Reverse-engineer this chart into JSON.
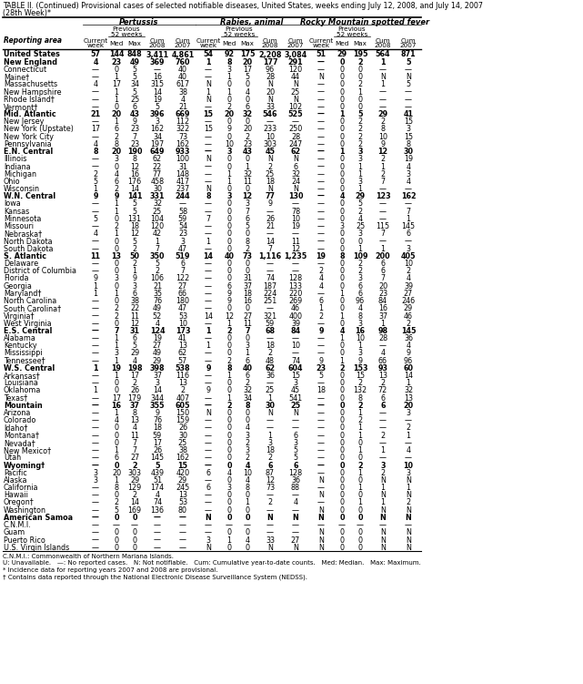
{
  "title_line1": "TABLE II. (Continued) Provisional cases of selected notifiable diseases, United States, weeks ending July 12, 2008, and July 14, 2007",
  "title_line2": "(28th Week)*",
  "col_groups": [
    "Pertussis",
    "Rabies, animal",
    "Rocky Mountain spotted fever"
  ],
  "rows": [
    [
      "United States",
      "57",
      "144",
      "848",
      "3,411",
      "4,861",
      "54",
      "92",
      "175",
      "2,208",
      "3,084",
      "51",
      "29",
      "195",
      "564",
      "871"
    ],
    [
      "New England",
      "4",
      "23",
      "49",
      "369",
      "760",
      "1",
      "8",
      "20",
      "177",
      "291",
      "—",
      "0",
      "2",
      "1",
      "5"
    ],
    [
      "Connecticut",
      "—",
      "0",
      "5",
      "—",
      "40",
      "—",
      "3",
      "17",
      "96",
      "120",
      "—",
      "0",
      "0",
      "—",
      "—"
    ],
    [
      "Maine†",
      "—",
      "1",
      "5",
      "16",
      "40",
      "—",
      "1",
      "5",
      "28",
      "44",
      "N",
      "0",
      "0",
      "N",
      "N"
    ],
    [
      "Massachusetts",
      "4",
      "17",
      "34",
      "315",
      "617",
      "N",
      "0",
      "0",
      "N",
      "N",
      "—",
      "0",
      "2",
      "1",
      "5"
    ],
    [
      "New Hampshire",
      "—",
      "1",
      "5",
      "14",
      "38",
      "1",
      "1",
      "4",
      "20",
      "25",
      "—",
      "0",
      "1",
      "—",
      "—"
    ],
    [
      "Rhode Island†",
      "—",
      "1",
      "25",
      "19",
      "4",
      "N",
      "0",
      "0",
      "N",
      "N",
      "—",
      "0",
      "0",
      "—",
      "—"
    ],
    [
      "Vermont†",
      "—",
      "0",
      "6",
      "5",
      "21",
      "—",
      "2",
      "6",
      "33",
      "102",
      "—",
      "0",
      "0",
      "—",
      "—"
    ],
    [
      "Mid. Atlantic",
      "21",
      "20",
      "43",
      "396",
      "669",
      "15",
      "20",
      "32",
      "546",
      "525",
      "—",
      "1",
      "5",
      "29",
      "41"
    ],
    [
      "New Jersey",
      "—",
      "1",
      "9",
      "3",
      "112",
      "—",
      "0",
      "0",
      "—",
      "—",
      "—",
      "0",
      "2",
      "2",
      "15"
    ],
    [
      "New York (Upstate)",
      "17",
      "6",
      "23",
      "162",
      "322",
      "15",
      "9",
      "20",
      "233",
      "250",
      "—",
      "0",
      "2",
      "8",
      "3"
    ],
    [
      "New York City",
      "—",
      "2",
      "7",
      "34",
      "73",
      "—",
      "0",
      "2",
      "10",
      "28",
      "—",
      "0",
      "2",
      "10",
      "15"
    ],
    [
      "Pennsylvania",
      "4",
      "8",
      "23",
      "197",
      "162",
      "—",
      "10",
      "23",
      "303",
      "247",
      "—",
      "0",
      "2",
      "9",
      "8"
    ],
    [
      "E.N. Central",
      "8",
      "20",
      "190",
      "649",
      "933",
      "—",
      "3",
      "43",
      "45",
      "62",
      "—",
      "1",
      "3",
      "12",
      "30"
    ],
    [
      "Illinois",
      "—",
      "3",
      "8",
      "62",
      "100",
      "N",
      "0",
      "0",
      "N",
      "N",
      "—",
      "0",
      "3",
      "2",
      "19"
    ],
    [
      "Indiana",
      "—",
      "0",
      "12",
      "22",
      "31",
      "—",
      "0",
      "1",
      "2",
      "6",
      "—",
      "0",
      "1",
      "1",
      "4"
    ],
    [
      "Michigan",
      "2",
      "4",
      "16",
      "77",
      "148",
      "—",
      "1",
      "32",
      "25",
      "32",
      "—",
      "0",
      "1",
      "2",
      "3"
    ],
    [
      "Ohio",
      "5",
      "6",
      "176",
      "458",
      "417",
      "—",
      "1",
      "11",
      "18",
      "24",
      "—",
      "0",
      "3",
      "7",
      "4"
    ],
    [
      "Wisconsin",
      "1",
      "2",
      "14",
      "30",
      "237",
      "N",
      "0",
      "0",
      "N",
      "N",
      "—",
      "0",
      "1",
      "—",
      "—"
    ],
    [
      "W.N. Central",
      "9",
      "9",
      "141",
      "331",
      "244",
      "8",
      "3",
      "12",
      "77",
      "130",
      "—",
      "4",
      "29",
      "123",
      "162"
    ],
    [
      "Iowa",
      "—",
      "1",
      "5",
      "32",
      "—",
      "—",
      "0",
      "3",
      "9",
      "—",
      "—",
      "0",
      "5",
      "—",
      "—"
    ],
    [
      "Kansas",
      "—",
      "1",
      "5",
      "25",
      "58",
      "—",
      "0",
      "7",
      "—",
      "78",
      "—",
      "0",
      "2",
      "—",
      "7"
    ],
    [
      "Minnesota",
      "5",
      "0",
      "131",
      "104",
      "59",
      "7",
      "0",
      "6",
      "26",
      "10",
      "—",
      "0",
      "4",
      "—",
      "1"
    ],
    [
      "Missouri",
      "—",
      "2",
      "18",
      "120",
      "54",
      "—",
      "0",
      "5",
      "21",
      "19",
      "—",
      "3",
      "25",
      "115",
      "145"
    ],
    [
      "Nebraska†",
      "4",
      "1",
      "12",
      "42",
      "23",
      "—",
      "0",
      "0",
      "—",
      "—",
      "—",
      "0",
      "3",
      "7",
      "6"
    ],
    [
      "North Dakota",
      "—",
      "0",
      "5",
      "1",
      "3",
      "1",
      "0",
      "8",
      "14",
      "11",
      "—",
      "0",
      "0",
      "—",
      "—"
    ],
    [
      "South Dakota",
      "—",
      "0",
      "2",
      "7",
      "47",
      "—",
      "0",
      "2",
      "7",
      "12",
      "—",
      "0",
      "1",
      "1",
      "3"
    ],
    [
      "S. Atlantic",
      "11",
      "13",
      "50",
      "350",
      "519",
      "14",
      "40",
      "73",
      "1,116",
      "1,235",
      "19",
      "8",
      "109",
      "200",
      "405"
    ],
    [
      "Delaware",
      "—",
      "0",
      "2",
      "5",
      "6",
      "—",
      "0",
      "0",
      "—",
      "—",
      "—",
      "0",
      "2",
      "6",
      "10"
    ],
    [
      "District of Columbia",
      "—",
      "0",
      "1",
      "2",
      "7",
      "—",
      "0",
      "0",
      "—",
      "—",
      "2",
      "0",
      "2",
      "6",
      "2"
    ],
    [
      "Florida",
      "9",
      "3",
      "9",
      "106",
      "122",
      "—",
      "0",
      "31",
      "74",
      "128",
      "4",
      "0",
      "3",
      "7",
      "4"
    ],
    [
      "Georgia",
      "1",
      "0",
      "3",
      "21",
      "27",
      "—",
      "6",
      "37",
      "187",
      "133",
      "4",
      "0",
      "6",
      "20",
      "39"
    ],
    [
      "Maryland†",
      "1",
      "1",
      "6",
      "35",
      "66",
      "—",
      "9",
      "18",
      "224",
      "220",
      "—",
      "1",
      "6",
      "23",
      "27"
    ],
    [
      "North Carolina",
      "—",
      "0",
      "38",
      "76",
      "180",
      "—",
      "9",
      "16",
      "251",
      "269",
      "6",
      "0",
      "96",
      "84",
      "246"
    ],
    [
      "South Carolina†",
      "—",
      "2",
      "22",
      "49",
      "47",
      "—",
      "0",
      "0",
      "—",
      "46",
      "1",
      "0",
      "4",
      "16",
      "29"
    ],
    [
      "Virginia†",
      "—",
      "2",
      "11",
      "52",
      "53",
      "14",
      "12",
      "27",
      "321",
      "400",
      "2",
      "1",
      "8",
      "37",
      "46"
    ],
    [
      "West Virginia",
      "—",
      "0",
      "12",
      "4",
      "10",
      "—",
      "1",
      "11",
      "59",
      "39",
      "—",
      "0",
      "3",
      "1",
      "2"
    ],
    [
      "E.S. Central",
      "—",
      "7",
      "31",
      "124",
      "173",
      "1",
      "2",
      "7",
      "68",
      "84",
      "9",
      "4",
      "16",
      "98",
      "145"
    ],
    [
      "Alabama",
      "—",
      "1",
      "6",
      "19",
      "41",
      "—",
      "0",
      "0",
      "—",
      "—",
      "—",
      "1",
      "10",
      "28",
      "36"
    ],
    [
      "Kentucky",
      "—",
      "1",
      "5",
      "27",
      "13",
      "1",
      "0",
      "3",
      "18",
      "10",
      "—",
      "0",
      "1",
      "—",
      "4"
    ],
    [
      "Mississippi",
      "—",
      "3",
      "29",
      "49",
      "62",
      "—",
      "0",
      "1",
      "2",
      "—",
      "—",
      "0",
      "3",
      "4",
      "9"
    ],
    [
      "Tennessee†",
      "—",
      "1",
      "4",
      "29",
      "57",
      "—",
      "2",
      "6",
      "48",
      "74",
      "9",
      "1",
      "9",
      "66",
      "96"
    ],
    [
      "W.S. Central",
      "1",
      "19",
      "198",
      "398",
      "538",
      "9",
      "8",
      "40",
      "62",
      "604",
      "23",
      "2",
      "153",
      "93",
      "60"
    ],
    [
      "Arkansas†",
      "—",
      "1",
      "17",
      "37",
      "116",
      "—",
      "1",
      "6",
      "36",
      "15",
      "5",
      "0",
      "15",
      "13",
      "14"
    ],
    [
      "Louisiana",
      "—",
      "0",
      "2",
      "3",
      "13",
      "—",
      "0",
      "2",
      "—",
      "3",
      "—",
      "0",
      "2",
      "2",
      "1"
    ],
    [
      "Oklahoma",
      "1",
      "0",
      "26",
      "14",
      "2",
      "9",
      "0",
      "32",
      "25",
      "45",
      "18",
      "0",
      "132",
      "72",
      "32"
    ],
    [
      "Texas†",
      "—",
      "17",
      "179",
      "344",
      "407",
      "—",
      "1",
      "34",
      "1",
      "541",
      "—",
      "0",
      "8",
      "6",
      "13"
    ],
    [
      "Mountain",
      "—",
      "16",
      "37",
      "355",
      "605",
      "—",
      "2",
      "8",
      "30",
      "25",
      "—",
      "0",
      "2",
      "6",
      "20"
    ],
    [
      "Arizona",
      "—",
      "1",
      "8",
      "9",
      "150",
      "N",
      "0",
      "0",
      "N",
      "N",
      "—",
      "0",
      "1",
      "—",
      "3"
    ],
    [
      "Colorado",
      "—",
      "4",
      "13",
      "76",
      "159",
      "—",
      "0",
      "0",
      "—",
      "—",
      "—",
      "0",
      "2",
      "—",
      "—"
    ],
    [
      "Idaho†",
      "—",
      "0",
      "4",
      "18",
      "26",
      "—",
      "0",
      "4",
      "—",
      "—",
      "—",
      "0",
      "1",
      "—",
      "2"
    ],
    [
      "Montana†",
      "—",
      "0",
      "11",
      "59",
      "30",
      "—",
      "0",
      "3",
      "1",
      "6",
      "—",
      "0",
      "1",
      "2",
      "1"
    ],
    [
      "Nevada†",
      "—",
      "0",
      "7",
      "17",
      "25",
      "—",
      "0",
      "2",
      "3",
      "3",
      "—",
      "0",
      "0",
      "—",
      "—"
    ],
    [
      "New Mexico†",
      "—",
      "1",
      "7",
      "26",
      "38",
      "—",
      "0",
      "3",
      "18",
      "5",
      "—",
      "0",
      "1",
      "1",
      "4"
    ],
    [
      "Utah",
      "—",
      "6",
      "27",
      "145",
      "162",
      "—",
      "0",
      "2",
      "2",
      "5",
      "—",
      "0",
      "0",
      "—",
      "—"
    ],
    [
      "Wyoming†",
      "—",
      "0",
      "2",
      "5",
      "15",
      "—",
      "0",
      "4",
      "6",
      "6",
      "—",
      "0",
      "2",
      "3",
      "10"
    ],
    [
      "Pacific",
      "3",
      "20",
      "303",
      "439",
      "420",
      "6",
      "4",
      "10",
      "87",
      "128",
      "—",
      "0",
      "1",
      "2",
      "3"
    ],
    [
      "Alaska",
      "3",
      "1",
      "29",
      "51",
      "29",
      "—",
      "0",
      "4",
      "12",
      "36",
      "N",
      "0",
      "0",
      "N",
      "N"
    ],
    [
      "California",
      "—",
      "8",
      "129",
      "174",
      "245",
      "6",
      "3",
      "8",
      "73",
      "88",
      "—",
      "0",
      "1",
      "1",
      "1"
    ],
    [
      "Hawaii",
      "—",
      "0",
      "2",
      "4",
      "13",
      "—",
      "0",
      "0",
      "—",
      "—",
      "N",
      "0",
      "0",
      "N",
      "N"
    ],
    [
      "Oregon†",
      "—",
      "2",
      "14",
      "74",
      "53",
      "—",
      "0",
      "1",
      "2",
      "4",
      "—",
      "0",
      "1",
      "1",
      "2"
    ],
    [
      "Washington",
      "—",
      "5",
      "169",
      "136",
      "80",
      "—",
      "0",
      "0",
      "—",
      "—",
      "N",
      "0",
      "0",
      "N",
      "N"
    ],
    [
      "American Samoa",
      "—",
      "0",
      "0",
      "—",
      "—",
      "N",
      "0",
      "0",
      "N",
      "N",
      "N",
      "0",
      "0",
      "N",
      "N"
    ],
    [
      "C.N.M.I.",
      "—",
      "—",
      "—",
      "—",
      "—",
      "—",
      "—",
      "—",
      "—",
      "—",
      "—",
      "—",
      "—",
      "—",
      "—"
    ],
    [
      "Guam",
      "—",
      "0",
      "0",
      "—",
      "—",
      "—",
      "0",
      "0",
      "—",
      "—",
      "N",
      "0",
      "0",
      "N",
      "N"
    ],
    [
      "Puerto Rico",
      "—",
      "0",
      "0",
      "—",
      "—",
      "3",
      "1",
      "4",
      "33",
      "27",
      "N",
      "0",
      "0",
      "N",
      "N"
    ],
    [
      "U.S. Virgin Islands",
      "—",
      "0",
      "0",
      "—",
      "—",
      "N",
      "0",
      "0",
      "N",
      "N",
      "N",
      "0",
      "0",
      "N",
      "N"
    ]
  ],
  "bold_rows": [
    0,
    1,
    8,
    13,
    19,
    27,
    37,
    42,
    47,
    55,
    62
  ],
  "footnotes": [
    "C.N.M.I.: Commonwealth of Northern Mariana Islands.",
    "U: Unavailable.   —: No reported cases.   N: Not notifiable.   Cum: Cumulative year-to-date counts.   Med: Median.   Max: Maximum.",
    "* Incidence data for reporting years 2007 and 2008 are provisional.",
    "† Contains data reported through the National Electronic Disease Surveillance System (NEDSS)."
  ]
}
